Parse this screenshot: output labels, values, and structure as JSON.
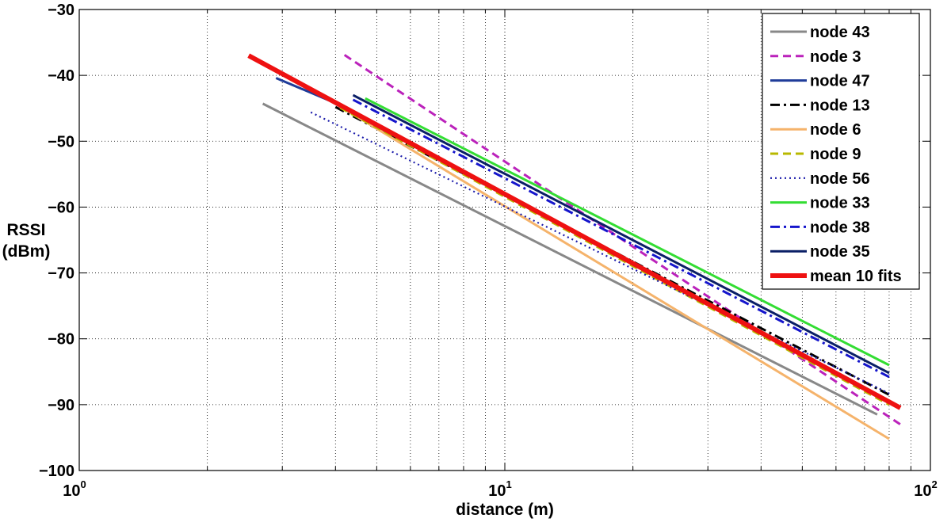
{
  "chart_data": {
    "type": "line",
    "title": "",
    "xlabel": "distance (m)",
    "ylabel_lines": [
      "RSSI",
      "(dBm)"
    ],
    "xscale": "log",
    "xlim": [
      1,
      100
    ],
    "ylim": [
      -100,
      -30
    ],
    "grid": true,
    "legend_position": "top-right",
    "x_ticks": [
      {
        "base": "10",
        "exp": "0",
        "value": 1
      },
      {
        "base": "10",
        "exp": "1",
        "value": 10
      },
      {
        "base": "10",
        "exp": "2",
        "value": 100
      }
    ],
    "y_ticks": [
      {
        "label": "−30",
        "value": -30
      },
      {
        "label": "−40",
        "value": -40
      },
      {
        "label": "−50",
        "value": -50
      },
      {
        "label": "−60",
        "value": -60
      },
      {
        "label": "−70",
        "value": -70
      },
      {
        "label": "−80",
        "value": -80
      },
      {
        "label": "−90",
        "value": -90
      },
      {
        "label": "−100",
        "value": -100
      }
    ],
    "series": [
      {
        "name": "node 43",
        "color": "#888888",
        "style": "solid",
        "x": [
          2.7,
          75
        ],
        "y": [
          -44.3,
          -91.5
        ]
      },
      {
        "name": "node 3",
        "color": "#bb22bb",
        "style": "dashed",
        "x": [
          4.2,
          85
        ],
        "y": [
          -36.9,
          -93.0
        ]
      },
      {
        "name": "node 47",
        "color": "#1f3c99",
        "style": "solid",
        "x": [
          2.9,
          4.1
        ],
        "y": [
          -40.4,
          -44.5
        ]
      },
      {
        "name": "node 13",
        "color": "#000000",
        "style": "dashdot",
        "x": [
          4.0,
          80
        ],
        "y": [
          -44.8,
          -88.5
        ]
      },
      {
        "name": "node 6",
        "color": "#f5b36b",
        "style": "solid",
        "x": [
          4.0,
          80
        ],
        "y": [
          -44.3,
          -95.2
        ]
      },
      {
        "name": "node 9",
        "color": "#b8b800",
        "style": "dashed",
        "x": [
          4.1,
          80
        ],
        "y": [
          -44.9,
          -90.0
        ]
      },
      {
        "name": "node 56",
        "color": "#1a1aaa",
        "style": "dotted",
        "x": [
          3.5,
          80
        ],
        "y": [
          -45.6,
          -88.3
        ]
      },
      {
        "name": "node 33",
        "color": "#33dd33",
        "style": "solid",
        "x": [
          4.7,
          80
        ],
        "y": [
          -43.5,
          -84.0
        ]
      },
      {
        "name": "node 38",
        "color": "#1515cc",
        "style": "dashdot",
        "x": [
          4.4,
          80
        ],
        "y": [
          -43.7,
          -85.8
        ]
      },
      {
        "name": "node 35",
        "color": "#0a1f66",
        "style": "solid",
        "x": [
          4.4,
          80
        ],
        "y": [
          -43.0,
          -85.2
        ]
      },
      {
        "name": "mean 10 fits",
        "color": "#ee1111",
        "style": "thick",
        "x": [
          2.5,
          85
        ],
        "y": [
          -37.0,
          -90.5
        ]
      }
    ]
  }
}
